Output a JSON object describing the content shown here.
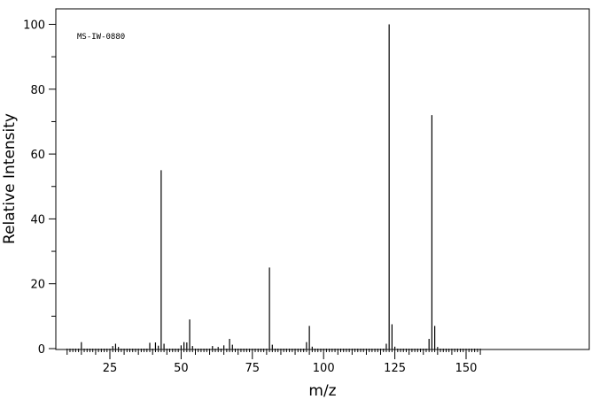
{
  "chart_data": {
    "type": "bar",
    "xlabel": "m/z",
    "ylabel": "Relative Intensity",
    "annotation": "MS-IW-0880",
    "xlim": [
      10,
      157
    ],
    "ylim": [
      0,
      100
    ],
    "x_ticks": [
      25,
      50,
      75,
      100,
      125,
      150
    ],
    "y_ticks": [
      0,
      20,
      40,
      60,
      80,
      100
    ],
    "grid": false,
    "peaks": [
      {
        "mz": 15,
        "intensity": 2.0
      },
      {
        "mz": 26,
        "intensity": 0.8
      },
      {
        "mz": 27,
        "intensity": 1.5
      },
      {
        "mz": 28,
        "intensity": 0.5
      },
      {
        "mz": 39,
        "intensity": 1.8
      },
      {
        "mz": 41,
        "intensity": 1.9
      },
      {
        "mz": 42,
        "intensity": 0.9
      },
      {
        "mz": 43,
        "intensity": 55.0
      },
      {
        "mz": 44,
        "intensity": 1.5
      },
      {
        "mz": 50,
        "intensity": 1.0
      },
      {
        "mz": 51,
        "intensity": 2.0
      },
      {
        "mz": 52,
        "intensity": 1.9
      },
      {
        "mz": 53,
        "intensity": 9.0
      },
      {
        "mz": 54,
        "intensity": 0.8
      },
      {
        "mz": 61,
        "intensity": 0.8
      },
      {
        "mz": 63,
        "intensity": 0.5
      },
      {
        "mz": 65,
        "intensity": 1.0
      },
      {
        "mz": 67,
        "intensity": 3.0
      },
      {
        "mz": 68,
        "intensity": 1.2
      },
      {
        "mz": 81,
        "intensity": 25.0
      },
      {
        "mz": 82,
        "intensity": 1.2
      },
      {
        "mz": 94,
        "intensity": 2.0
      },
      {
        "mz": 95,
        "intensity": 7.0
      },
      {
        "mz": 96,
        "intensity": 0.6
      },
      {
        "mz": 122,
        "intensity": 1.5
      },
      {
        "mz": 123,
        "intensity": 100.0
      },
      {
        "mz": 124,
        "intensity": 7.5
      },
      {
        "mz": 125,
        "intensity": 0.6
      },
      {
        "mz": 137,
        "intensity": 3.0
      },
      {
        "mz": 138,
        "intensity": 72.0
      },
      {
        "mz": 139,
        "intensity": 7.0
      },
      {
        "mz": 140,
        "intensity": 0.5
      }
    ]
  }
}
